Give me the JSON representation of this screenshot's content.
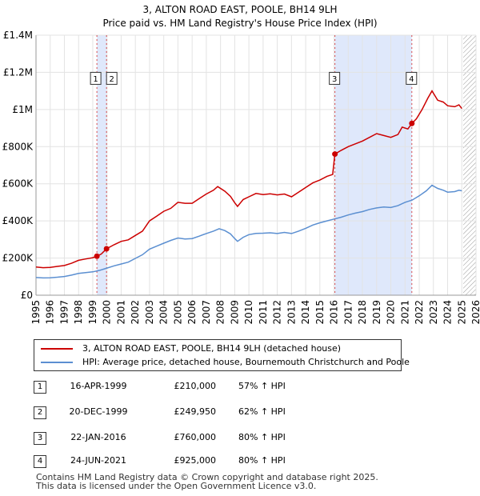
{
  "header": {
    "title": "3, ALTON ROAD EAST, POOLE, BH14 9LH",
    "subtitle": "Price paid vs. HM Land Registry's House Price Index (HPI)"
  },
  "chart_data": {
    "type": "line",
    "xlim": [
      1995,
      2026
    ],
    "ylim": [
      0,
      1400000
    ],
    "x_ticks": [
      "1995",
      "1996",
      "1997",
      "1998",
      "1999",
      "2000",
      "2001",
      "2002",
      "2003",
      "2004",
      "2005",
      "2006",
      "2007",
      "2008",
      "2009",
      "2010",
      "2011",
      "2012",
      "2013",
      "2014",
      "2015",
      "2016",
      "2017",
      "2018",
      "2019",
      "2020",
      "2021",
      "2022",
      "2023",
      "2024",
      "2025",
      "2026"
    ],
    "y_ticks": [
      {
        "value": 0,
        "label": "£0"
      },
      {
        "value": 200000,
        "label": "£200K"
      },
      {
        "value": 400000,
        "label": "£400K"
      },
      {
        "value": 600000,
        "label": "£600K"
      },
      {
        "value": 800000,
        "label": "£800K"
      },
      {
        "value": 1000000,
        "label": "£1M"
      },
      {
        "value": 1200000,
        "label": "£1.2M"
      },
      {
        "value": 1400000,
        "label": "£1.4M"
      }
    ],
    "grid": true,
    "colors": {
      "property": "#cc0000",
      "hpi": "#5b8fd1",
      "shade": "#dfe8fb",
      "marker_line": "#cc0000",
      "hatch": "#999999"
    },
    "shaded_periods": [
      [
        1999.29,
        1999.97
      ],
      [
        2016.06,
        2021.48
      ]
    ],
    "future_hatch_from": 2025.1,
    "series": [
      {
        "name": "3, ALTON ROAD EAST, POOLE, BH14 9LH (detached house)",
        "key": "property",
        "points": [
          [
            1995.0,
            152000
          ],
          [
            1995.5,
            148000
          ],
          [
            1996.0,
            150000
          ],
          [
            1996.5,
            155000
          ],
          [
            1997.0,
            160000
          ],
          [
            1997.5,
            172000
          ],
          [
            1998.0,
            188000
          ],
          [
            1998.5,
            195000
          ],
          [
            1999.0,
            202000
          ],
          [
            1999.29,
            210000
          ],
          [
            1999.6,
            222000
          ],
          [
            1999.97,
            249950
          ],
          [
            2000.5,
            272000
          ],
          [
            2001.0,
            290000
          ],
          [
            2001.5,
            298000
          ],
          [
            2002.0,
            322000
          ],
          [
            2002.5,
            345000
          ],
          [
            2003.0,
            400000
          ],
          [
            2003.5,
            425000
          ],
          [
            2004.0,
            452000
          ],
          [
            2004.5,
            468000
          ],
          [
            2005.0,
            500000
          ],
          [
            2005.5,
            495000
          ],
          [
            2006.0,
            495000
          ],
          [
            2006.5,
            520000
          ],
          [
            2007.0,
            545000
          ],
          [
            2007.5,
            565000
          ],
          [
            2007.8,
            585000
          ],
          [
            2008.3,
            560000
          ],
          [
            2008.7,
            532000
          ],
          [
            2009.0,
            498000
          ],
          [
            2009.2,
            478000
          ],
          [
            2009.6,
            515000
          ],
          [
            2010.0,
            530000
          ],
          [
            2010.5,
            548000
          ],
          [
            2011.0,
            542000
          ],
          [
            2011.5,
            546000
          ],
          [
            2012.0,
            540000
          ],
          [
            2012.5,
            545000
          ],
          [
            2013.0,
            530000
          ],
          [
            2013.5,
            555000
          ],
          [
            2014.0,
            580000
          ],
          [
            2014.5,
            605000
          ],
          [
            2015.0,
            620000
          ],
          [
            2015.5,
            640000
          ],
          [
            2015.9,
            650000
          ],
          [
            2016.06,
            760000
          ],
          [
            2016.5,
            780000
          ],
          [
            2017.0,
            800000
          ],
          [
            2017.5,
            815000
          ],
          [
            2018.0,
            830000
          ],
          [
            2018.5,
            850000
          ],
          [
            2019.0,
            870000
          ],
          [
            2019.5,
            860000
          ],
          [
            2020.0,
            850000
          ],
          [
            2020.5,
            865000
          ],
          [
            2020.8,
            905000
          ],
          [
            2021.2,
            895000
          ],
          [
            2021.48,
            925000
          ],
          [
            2021.8,
            950000
          ],
          [
            2022.2,
            1000000
          ],
          [
            2022.6,
            1060000
          ],
          [
            2022.9,
            1100000
          ],
          [
            2023.3,
            1050000
          ],
          [
            2023.7,
            1040000
          ],
          [
            2024.0,
            1020000
          ],
          [
            2024.5,
            1015000
          ],
          [
            2024.8,
            1025000
          ],
          [
            2025.0,
            1005000
          ]
        ]
      },
      {
        "name": "HPI: Average price, detached house, Bournemouth Christchurch and Poole",
        "key": "hpi",
        "points": [
          [
            1995.0,
            95000
          ],
          [
            1995.5,
            93000
          ],
          [
            1996.0,
            94000
          ],
          [
            1996.5,
            97000
          ],
          [
            1997.0,
            101000
          ],
          [
            1997.5,
            108000
          ],
          [
            1998.0,
            117000
          ],
          [
            1998.5,
            122000
          ],
          [
            1999.0,
            126000
          ],
          [
            1999.5,
            134000
          ],
          [
            2000.0,
            146000
          ],
          [
            2000.5,
            158000
          ],
          [
            2001.0,
            168000
          ],
          [
            2001.5,
            178000
          ],
          [
            2002.0,
            198000
          ],
          [
            2002.5,
            218000
          ],
          [
            2003.0,
            248000
          ],
          [
            2003.5,
            264000
          ],
          [
            2004.0,
            280000
          ],
          [
            2004.5,
            295000
          ],
          [
            2005.0,
            308000
          ],
          [
            2005.5,
            303000
          ],
          [
            2006.0,
            305000
          ],
          [
            2006.5,
            318000
          ],
          [
            2007.0,
            332000
          ],
          [
            2007.5,
            345000
          ],
          [
            2007.9,
            358000
          ],
          [
            2008.3,
            348000
          ],
          [
            2008.7,
            330000
          ],
          [
            2009.0,
            305000
          ],
          [
            2009.2,
            290000
          ],
          [
            2009.6,
            312000
          ],
          [
            2010.0,
            326000
          ],
          [
            2010.5,
            333000
          ],
          [
            2011.0,
            334000
          ],
          [
            2011.5,
            336000
          ],
          [
            2012.0,
            332000
          ],
          [
            2012.5,
            338000
          ],
          [
            2013.0,
            332000
          ],
          [
            2013.5,
            345000
          ],
          [
            2014.0,
            360000
          ],
          [
            2014.5,
            378000
          ],
          [
            2015.0,
            390000
          ],
          [
            2015.5,
            400000
          ],
          [
            2016.0,
            410000
          ],
          [
            2016.5,
            420000
          ],
          [
            2017.0,
            432000
          ],
          [
            2017.5,
            442000
          ],
          [
            2018.0,
            450000
          ],
          [
            2018.5,
            462000
          ],
          [
            2019.0,
            470000
          ],
          [
            2019.5,
            475000
          ],
          [
            2020.0,
            472000
          ],
          [
            2020.5,
            482000
          ],
          [
            2021.0,
            500000
          ],
          [
            2021.5,
            512000
          ],
          [
            2022.0,
            535000
          ],
          [
            2022.5,
            562000
          ],
          [
            2022.9,
            592000
          ],
          [
            2023.3,
            575000
          ],
          [
            2023.7,
            565000
          ],
          [
            2024.0,
            555000
          ],
          [
            2024.5,
            558000
          ],
          [
            2024.8,
            565000
          ],
          [
            2025.0,
            562000
          ]
        ]
      }
    ],
    "sales": [
      {
        "label": "1",
        "x": 1999.29,
        "y": 210000
      },
      {
        "label": "2",
        "x": 1999.97,
        "y": 249950
      },
      {
        "label": "3",
        "x": 2016.06,
        "y": 760000
      },
      {
        "label": "4",
        "x": 2021.48,
        "y": 925000
      }
    ]
  },
  "legend": {
    "property_label": "3, ALTON ROAD EAST, POOLE, BH14 9LH (detached house)",
    "hpi_label": "HPI: Average price, detached house, Bournemouth Christchurch and Poole"
  },
  "transactions": [
    {
      "num": "1",
      "date": "16-APR-1999",
      "price": "£210,000",
      "hpi": "57% ↑ HPI"
    },
    {
      "num": "2",
      "date": "20-DEC-1999",
      "price": "£249,950",
      "hpi": "62% ↑ HPI"
    },
    {
      "num": "3",
      "date": "22-JAN-2016",
      "price": "£760,000",
      "hpi": "80% ↑ HPI"
    },
    {
      "num": "4",
      "date": "24-JUN-2021",
      "price": "£925,000",
      "hpi": "80% ↑ HPI"
    }
  ],
  "footer": {
    "line1": "Contains HM Land Registry data © Crown copyright and database right 2025.",
    "line2": "This data is licensed under the Open Government Licence v3.0."
  }
}
